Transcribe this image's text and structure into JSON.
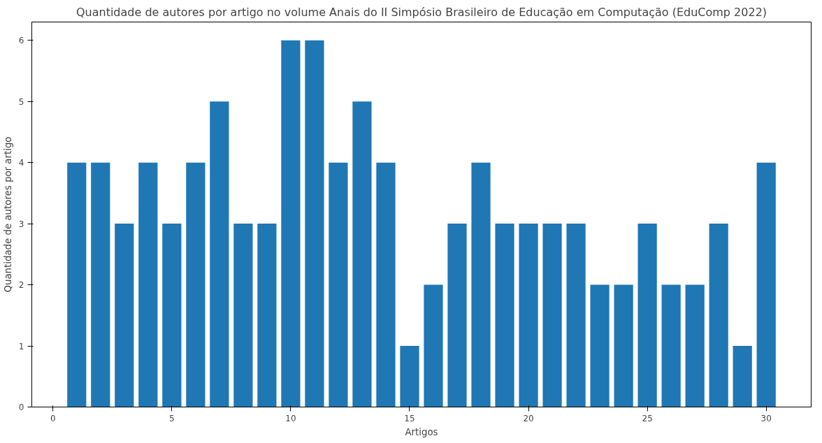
{
  "chart_data": {
    "type": "bar",
    "title": "Quantidade de autores por artigo no volume Anais do II Simpósio Brasileiro de Educação em Computação (EduComp 2022)",
    "xlabel": "Artigos",
    "ylabel": "Quantidade de autores por artigo",
    "x": [
      1,
      2,
      3,
      4,
      5,
      6,
      7,
      8,
      9,
      10,
      11,
      12,
      13,
      14,
      15,
      16,
      17,
      18,
      19,
      20,
      21,
      22,
      23,
      24,
      25,
      26,
      27,
      28,
      29,
      30
    ],
    "values": [
      4,
      4,
      3,
      4,
      3,
      4,
      5,
      3,
      3,
      6,
      6,
      4,
      5,
      4,
      1,
      2,
      3,
      4,
      3,
      3,
      3,
      3,
      2,
      2,
      3,
      2,
      2,
      3,
      1,
      4
    ],
    "color": "#1f77b4",
    "xlim": [
      -0.89,
      31.89
    ],
    "ylim": [
      0,
      6.3
    ],
    "xticks": [
      0,
      5,
      10,
      15,
      20,
      25,
      30
    ],
    "yticks": [
      0,
      1,
      2,
      3,
      4,
      5,
      6
    ],
    "grid": false
  }
}
